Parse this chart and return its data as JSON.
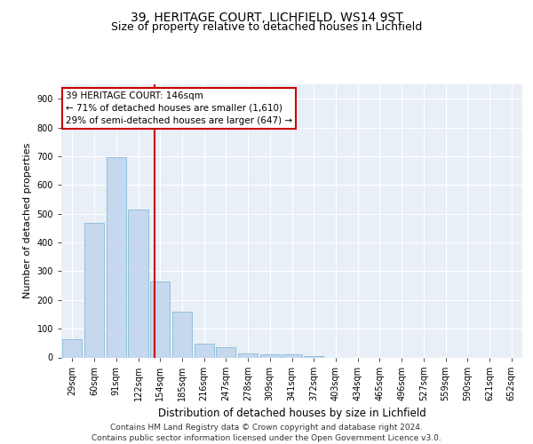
{
  "title1": "39, HERITAGE COURT, LICHFIELD, WS14 9ST",
  "title2": "Size of property relative to detached houses in Lichfield",
  "xlabel": "Distribution of detached houses by size in Lichfield",
  "ylabel": "Number of detached properties",
  "footnote1": "Contains HM Land Registry data © Crown copyright and database right 2024.",
  "footnote2": "Contains public sector information licensed under the Open Government Licence v3.0.",
  "bar_labels": [
    "29sqm",
    "60sqm",
    "91sqm",
    "122sqm",
    "154sqm",
    "185sqm",
    "216sqm",
    "247sqm",
    "278sqm",
    "309sqm",
    "341sqm",
    "372sqm",
    "403sqm",
    "434sqm",
    "465sqm",
    "496sqm",
    "527sqm",
    "559sqm",
    "590sqm",
    "621sqm",
    "652sqm"
  ],
  "bar_values": [
    63,
    468,
    697,
    513,
    265,
    160,
    48,
    34,
    15,
    10,
    10,
    4,
    0,
    0,
    0,
    0,
    0,
    0,
    0,
    0,
    0
  ],
  "bar_color": "#c5d8ed",
  "bar_edge_color": "#7ab0d4",
  "highlight_line_label": "39 HERITAGE COURT: 146sqm",
  "annotation_line1": "← 71% of detached houses are smaller (1,610)",
  "annotation_line2": "29% of semi-detached houses are larger (647) →",
  "annotation_box_color": "#ffffff",
  "annotation_box_edge": "#cc0000",
  "vline_color": "#cc0000",
  "vline_x": 3.75,
  "ylim": [
    0,
    950
  ],
  "yticks": [
    0,
    100,
    200,
    300,
    400,
    500,
    600,
    700,
    800,
    900
  ],
  "background_color": "#e8eff7",
  "grid_color": "#ffffff",
  "title1_fontsize": 10,
  "title2_fontsize": 9,
  "xlabel_fontsize": 8.5,
  "ylabel_fontsize": 8,
  "tick_fontsize": 7,
  "footnote_fontsize": 6.5,
  "annot_fontsize": 7.5
}
